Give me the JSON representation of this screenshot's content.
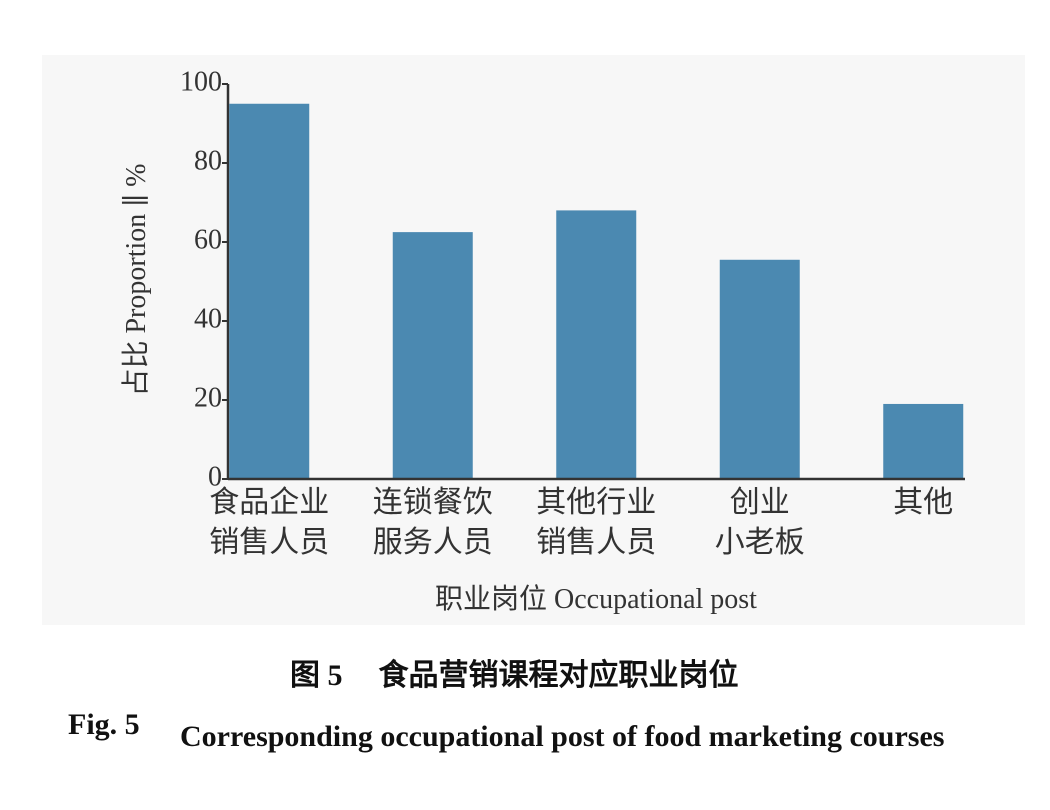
{
  "chart_data": {
    "type": "bar",
    "x_label": "职业岗位 Occupational post",
    "y_label": "占比 Proportion ∥ %",
    "categories": [
      "食品企业\n销售人员",
      "连锁餐饮\n服务人员",
      "其他行业\n销售人员",
      "创业\n小老板",
      "其他"
    ],
    "values": [
      95,
      62.5,
      68,
      55.5,
      19
    ],
    "color": "#4b89b1",
    "ylim": [
      0,
      100
    ],
    "yticks": [
      0,
      20,
      40,
      60,
      80,
      100
    ],
    "grid": false
  },
  "caption": {
    "cn_label": "图 5",
    "cn_text": "食品营销课程对应职业岗位",
    "en_label": "Fig. 5",
    "en_text": "Corresponding occupational post of food marketing courses"
  }
}
